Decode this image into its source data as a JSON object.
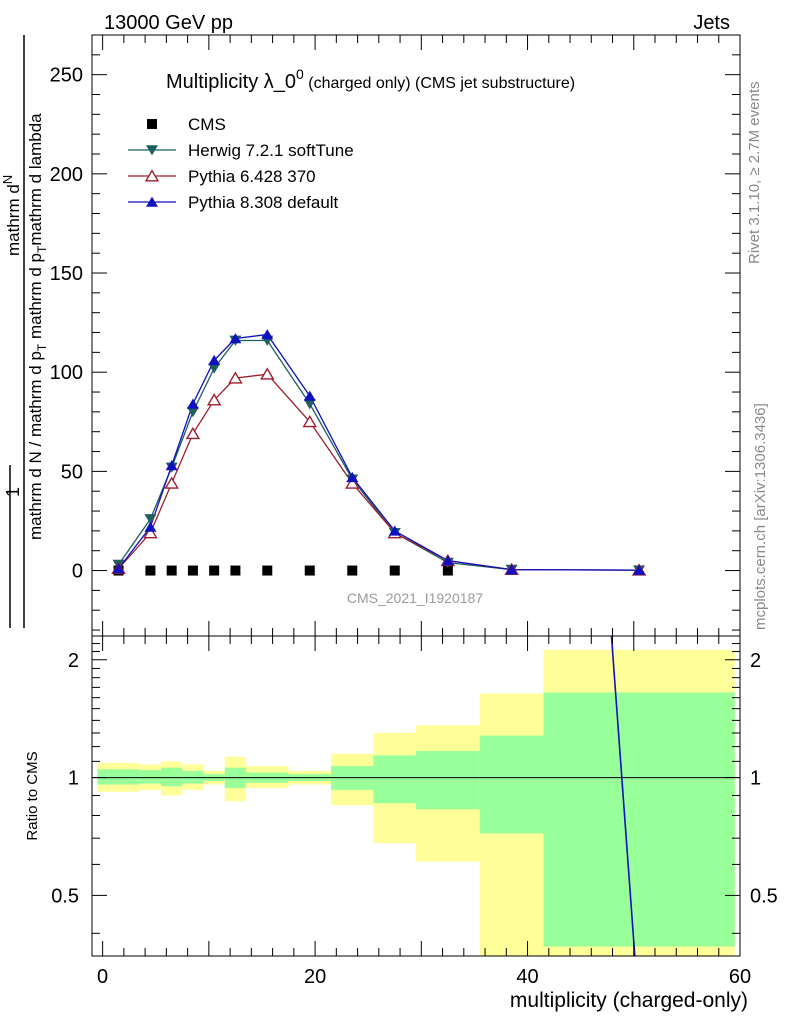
{
  "header": {
    "left": "13000 GeV pp",
    "right": "Jets"
  },
  "side_labels": {
    "rivet": "Rivet 3.1.10, ≥ 2.7M events",
    "mcplots": "mcplots.cern.ch [arXiv:1306.3436]"
  },
  "watermark": "CMS_2021_I1920187",
  "chart_data": [
    {
      "type": "line",
      "title_main": "Multiplicity λ_0",
      "title_sup": "0",
      "title_sub": " (charged only) (CMS jet substructure)",
      "ylabel_frac": "1",
      "ylabel_den": "mathrm d N / mathrm d p",
      "ylabel_num": "mathrm d",
      "ylabel_num2": "N",
      "ylabel_den2": "mathrm d p_T mathrm d lambda",
      "ylabel_T": "T",
      "ylabel_sub": "T",
      "ylabel_tail": "mathrm d lambda",
      "ylabel_mid": " mathrm d p",
      "ylabel_mathrm": "mathrm",
      "ylim": [
        -33,
        270
      ],
      "xlim": [
        -1,
        60
      ],
      "yticks": [
        "0",
        "50",
        "100",
        "150",
        "200",
        "250"
      ],
      "ytick_values": [
        0,
        50,
        100,
        150,
        200,
        250
      ],
      "legend": [
        "CMS",
        "Herwig 7.2.1 softTune",
        "Pythia 6.428 370",
        "Pythia 8.308 default"
      ],
      "series": [
        {
          "name": "CMS",
          "color": "#000000",
          "marker": "square",
          "x": [
            1.5,
            4.5,
            6.5,
            8.5,
            10.5,
            12.5,
            15.5,
            19.5,
            23.5,
            27.5,
            32.5
          ],
          "y": [
            0,
            0,
            0,
            0,
            0,
            0,
            0,
            0,
            0,
            0,
            0
          ]
        },
        {
          "name": "Herwig 7.2.1 softTune",
          "color": "#1f5f5f",
          "marker": "triangle-down",
          "x": [
            1.5,
            4.5,
            6.5,
            8.5,
            10.5,
            12.5,
            15.5,
            19.5,
            23.5,
            27.5,
            32.5,
            38.5,
            50.5
          ],
          "y": [
            3,
            26,
            52,
            80,
            102,
            116,
            116,
            84,
            46,
            19,
            4,
            0.5,
            0.2
          ]
        },
        {
          "name": "Pythia 6.428 370",
          "color": "#a01f2f",
          "marker": "triangle-up-open",
          "x": [
            1.5,
            4.5,
            6.5,
            8.5,
            10.5,
            12.5,
            15.5,
            19.5,
            23.5,
            27.5,
            32.5,
            38.5,
            50.5
          ],
          "y": [
            1,
            19,
            44,
            69,
            86,
            97,
            99,
            75,
            44,
            19,
            5,
            0.5,
            0.2
          ]
        },
        {
          "name": "Pythia 8.308 default",
          "color": "#1010c0",
          "marker": "triangle-up",
          "x": [
            1.5,
            4.5,
            6.5,
            8.5,
            10.5,
            12.5,
            15.5,
            19.5,
            23.5,
            27.5,
            32.5,
            38.5,
            50.5
          ],
          "y": [
            1,
            22,
            53,
            84,
            106,
            117,
            119,
            88,
            47,
            20,
            5,
            0.5,
            0.2
          ]
        }
      ]
    },
    {
      "type": "area",
      "ylabel": "Ratio to CMS",
      "xlabel": "multiplicity (charged-only)",
      "xlim": [
        -1,
        60
      ],
      "ylim": [
        0.35,
        2.3
      ],
      "yticks": [
        "0.5",
        "1",
        "2"
      ],
      "ytick_values": [
        0.5,
        1,
        2
      ],
      "xticks": [
        "0",
        "20",
        "40",
        "60"
      ],
      "xtick_values": [
        0,
        20,
        40,
        60
      ],
      "bins": [
        {
          "lo": -0.5,
          "hi": 3.5,
          "green": [
            0.96,
            1.05
          ],
          "yellow": [
            0.92,
            1.09
          ]
        },
        {
          "lo": 3.5,
          "hi": 5.5,
          "green": [
            0.965,
            1.045
          ],
          "yellow": [
            0.93,
            1.08
          ]
        },
        {
          "lo": 5.5,
          "hi": 7.5,
          "green": [
            0.95,
            1.06
          ],
          "yellow": [
            0.9,
            1.1
          ]
        },
        {
          "lo": 7.5,
          "hi": 9.5,
          "green": [
            0.965,
            1.04
          ],
          "yellow": [
            0.93,
            1.08
          ]
        },
        {
          "lo": 9.5,
          "hi": 11.5,
          "green": [
            0.98,
            1.02
          ],
          "yellow": [
            0.96,
            1.04
          ]
        },
        {
          "lo": 11.5,
          "hi": 13.5,
          "green": [
            0.94,
            1.06
          ],
          "yellow": [
            0.87,
            1.13
          ]
        },
        {
          "lo": 13.5,
          "hi": 17.5,
          "green": [
            0.97,
            1.03
          ],
          "yellow": [
            0.94,
            1.07
          ]
        },
        {
          "lo": 17.5,
          "hi": 21.5,
          "green": [
            0.98,
            1.02
          ],
          "yellow": [
            0.96,
            1.04
          ]
        },
        {
          "lo": 21.5,
          "hi": 25.5,
          "green": [
            0.93,
            1.07
          ],
          "yellow": [
            0.85,
            1.15
          ]
        },
        {
          "lo": 25.5,
          "hi": 29.5,
          "green": [
            0.86,
            1.14
          ],
          "yellow": [
            0.68,
            1.3
          ]
        },
        {
          "lo": 29.5,
          "hi": 35.5,
          "green": [
            0.83,
            1.17
          ],
          "yellow": [
            0.61,
            1.36
          ]
        },
        {
          "lo": 35.5,
          "hi": 41.5,
          "green": [
            0.72,
            1.28
          ],
          "yellow": [
            0.35,
            1.64
          ]
        },
        {
          "lo": 41.5,
          "hi": 59.5,
          "green": [
            0.37,
            1.65
          ],
          "yellow": [
            0.35,
            2.12
          ]
        }
      ],
      "line": {
        "color": "#1010c0",
        "x": [
          47.9,
          50.1
        ],
        "y": [
          2.3,
          0.35
        ]
      }
    }
  ]
}
